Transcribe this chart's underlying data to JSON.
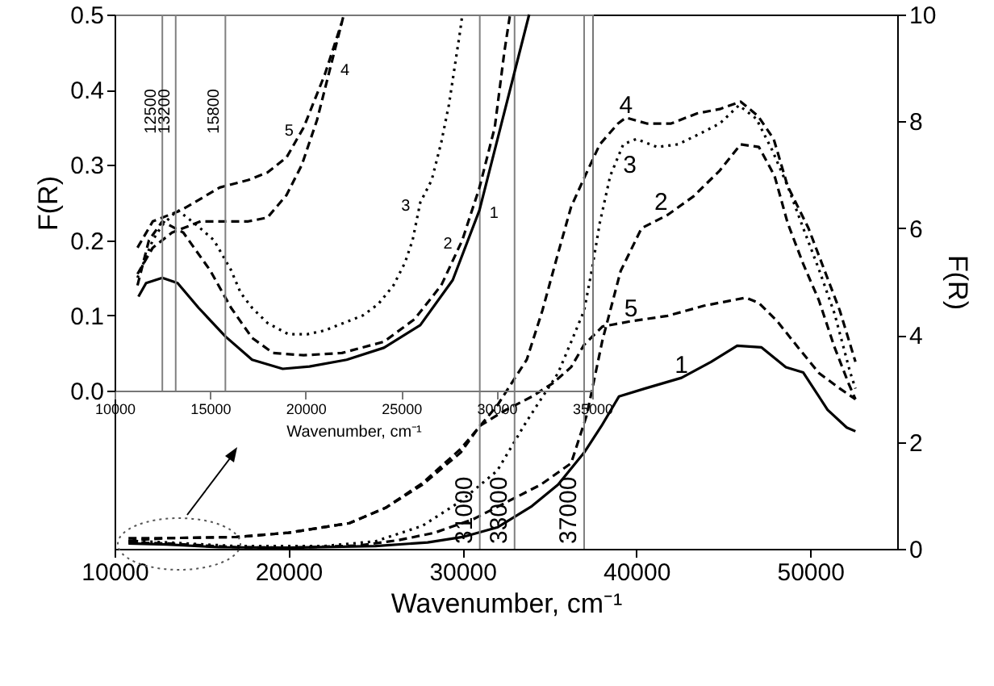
{
  "chart_data": [
    {
      "type": "line",
      "xlabel": "Wavenumber, cm⁻¹",
      "ylabel": "F(R)",
      "xlim": [
        10000,
        55000
      ],
      "xticks": [
        10000,
        20000,
        30000,
        40000,
        50000
      ],
      "ylim": [
        0,
        10
      ],
      "yticks": [
        0,
        2,
        4,
        6,
        8,
        10
      ],
      "series": [
        {
          "name": "1",
          "color": "#000000",
          "line_style": "solid",
          "x": [
            10800,
            13000,
            16000,
            20000,
            25000,
            28000,
            30000,
            32000,
            34000,
            35500,
            37000,
            38000,
            39000,
            40500,
            42600,
            44300,
            45800,
            47200,
            48600,
            49600,
            51000,
            52100,
            52600
          ],
          "values": [
            0.1,
            0.08,
            0.03,
            0.02,
            0.05,
            0.12,
            0.22,
            0.4,
            0.8,
            1.2,
            1.8,
            2.3,
            2.85,
            3.0,
            3.2,
            3.5,
            3.8,
            3.77,
            3.4,
            3.3,
            2.6,
            2.27,
            2.2
          ]
        },
        {
          "name": "2",
          "color": "#000000",
          "line_style": "dashed",
          "x": [
            10800,
            13000,
            17000,
            20000,
            24000,
            26300,
            28400,
            30600,
            32700,
            34500,
            36250,
            37150,
            38050,
            39100,
            40300,
            41800,
            43300,
            44800,
            46000,
            47050,
            47950,
            48700,
            49600,
            50500,
            51400,
            52200,
            52600
          ],
          "values": [
            0.12,
            0.1,
            0.03,
            0.02,
            0.06,
            0.16,
            0.3,
            0.55,
            0.9,
            1.2,
            1.6,
            2.5,
            3.9,
            5.2,
            6.0,
            6.25,
            6.6,
            7.08,
            7.57,
            7.52,
            6.98,
            6.1,
            5.33,
            4.65,
            3.77,
            3.1,
            2.8
          ]
        },
        {
          "name": "3",
          "color": "#000000",
          "line_style": "dotted",
          "x": [
            10800,
            13000,
            17000,
            22000,
            25000,
            27700,
            29900,
            32000,
            33700,
            35500,
            36250,
            37000,
            37450,
            37900,
            38500,
            39250,
            40000,
            41200,
            42400,
            43600,
            44800,
            45900,
            46900,
            47800,
            48700,
            49600,
            50500,
            51400,
            52300,
            52600
          ],
          "values": [
            0.15,
            0.12,
            0.05,
            0.05,
            0.14,
            0.43,
            0.89,
            1.46,
            2.39,
            3.29,
            3.87,
            4.46,
            5.23,
            6.1,
            6.98,
            7.57,
            7.67,
            7.52,
            7.57,
            7.76,
            7.96,
            8.3,
            8.05,
            7.47,
            6.79,
            6.0,
            5.23,
            4.4,
            3.3,
            3.0
          ]
        },
        {
          "name": "4",
          "color": "#000000",
          "line_style": "dashed",
          "x": [
            10800,
            13000,
            17000,
            20000,
            23500,
            25600,
            27700,
            29900,
            32000,
            33700,
            34600,
            35500,
            36250,
            37000,
            37900,
            38950,
            39400,
            40600,
            42000,
            43500,
            44800,
            46000,
            47000,
            47900,
            48700,
            49900,
            50800,
            51700,
            52600
          ],
          "values": [
            0.15,
            0.2,
            0.22,
            0.3,
            0.48,
            0.77,
            1.23,
            1.87,
            2.68,
            3.54,
            4.46,
            5.53,
            6.4,
            6.94,
            7.57,
            7.96,
            8.07,
            7.96,
            7.96,
            8.15,
            8.23,
            8.37,
            8.1,
            7.67,
            6.79,
            6.0,
            5.23,
            4.46,
            3.5
          ]
        },
        {
          "name": "5",
          "color": "#000000",
          "line_style": "dashed",
          "x": [
            10800,
            13000,
            17000,
            20000,
            23500,
            25600,
            27700,
            29900,
            31000,
            32500,
            34000,
            35200,
            36250,
            37000,
            38050,
            39700,
            41800,
            43900,
            46300,
            47050,
            48100,
            49300,
            50500,
            51700,
            52600
          ],
          "values": [
            0.2,
            0.2,
            0.22,
            0.3,
            0.48,
            0.77,
            1.2,
            1.8,
            2.3,
            2.6,
            2.85,
            3.1,
            3.4,
            3.82,
            4.16,
            4.26,
            4.36,
            4.55,
            4.7,
            4.6,
            4.26,
            3.77,
            3.29,
            3.0,
            2.8
          ]
        }
      ],
      "ref_lines": [
        {
          "axis": "x",
          "value": 31000,
          "label": "31000",
          "color": "#808080"
        },
        {
          "axis": "x",
          "value": 33000,
          "label": "33000",
          "color": "#808080"
        },
        {
          "axis": "x",
          "value": 37000,
          "label": "37000",
          "color": "#808080"
        }
      ]
    },
    {
      "type": "line",
      "xlabel": "Wavenumber, cm⁻¹",
      "ylabel": "F(R)",
      "xlim": [
        10000,
        35000
      ],
      "xticks": [
        10000,
        15000,
        20000,
        25000,
        30000,
        35000
      ],
      "ylim": [
        0,
        0.5
      ],
      "yticks": [
        {
          "value": 0,
          "label": "0.0"
        },
        {
          "value": 0.1,
          "label": "0.1"
        },
        {
          "value": 0.2,
          "label": "0.2"
        },
        {
          "value": 0.3,
          "label": "0.3"
        },
        {
          "value": 0.4,
          "label": "0.4"
        },
        {
          "value": 0.5,
          "label": "0.5"
        }
      ],
      "series": [
        {
          "name": "1",
          "color": "#000000",
          "line_style": "solid",
          "x": [
            11250,
            11650,
            12500,
            13300,
            14400,
            15800,
            17200,
            18800,
            20200,
            22150,
            24100,
            26000,
            27700,
            29100,
            30200,
            31000,
            31700
          ],
          "values": [
            0.125,
            0.143,
            0.15,
            0.143,
            0.11,
            0.072,
            0.041,
            0.029,
            0.032,
            0.041,
            0.057,
            0.087,
            0.147,
            0.24,
            0.35,
            0.43,
            0.5
          ]
        },
        {
          "name": "2",
          "color": "#000000",
          "line_style": "dashed",
          "x": [
            11200,
            11800,
            12500,
            13600,
            15000,
            16100,
            17200,
            18300,
            19900,
            21900,
            24100,
            25700,
            27100,
            28200,
            29100,
            29900,
            30400,
            30700
          ],
          "values": [
            0.14,
            0.2,
            0.225,
            0.21,
            0.16,
            0.11,
            0.07,
            0.05,
            0.047,
            0.05,
            0.065,
            0.095,
            0.14,
            0.2,
            0.27,
            0.35,
            0.45,
            0.5
          ]
        },
        {
          "name": "3",
          "color": "#000000",
          "line_style": "dotted",
          "x": [
            11200,
            12000,
            12500,
            13300,
            14300,
            15200,
            16100,
            16600,
            17200,
            18000,
            19100,
            20100,
            21000,
            22000,
            23000,
            23800,
            24600,
            25200,
            25600,
            26000,
            26600,
            27100,
            27500,
            27800,
            28100,
            28200
          ],
          "values": [
            0.15,
            0.2,
            0.22,
            0.24,
            0.22,
            0.2,
            0.16,
            0.13,
            0.11,
            0.09,
            0.075,
            0.075,
            0.08,
            0.09,
            0.1,
            0.115,
            0.14,
            0.17,
            0.2,
            0.25,
            0.28,
            0.33,
            0.38,
            0.43,
            0.48,
            0.5
          ]
        },
        {
          "name": "4",
          "color": "#000000",
          "line_style": "dashed",
          "x": [
            11200,
            12000,
            13000,
            14500,
            17000,
            18000,
            19000,
            19800,
            20600,
            21300,
            22000
          ],
          "values": [
            0.155,
            0.19,
            0.21,
            0.225,
            0.225,
            0.23,
            0.26,
            0.3,
            0.36,
            0.43,
            0.5
          ]
        },
        {
          "name": "5",
          "color": "#000000",
          "line_style": "dashed",
          "x": [
            11200,
            12000,
            13500,
            15500,
            17000,
            18000,
            19000,
            19900,
            21000,
            21900
          ],
          "values": [
            0.19,
            0.225,
            0.24,
            0.27,
            0.28,
            0.29,
            0.31,
            0.35,
            0.42,
            0.49
          ]
        }
      ],
      "ref_lines": [
        {
          "axis": "x",
          "value": 12500,
          "label": "12500",
          "color": "#808080"
        },
        {
          "axis": "x",
          "value": 13200,
          "label": "13200",
          "color": "#808080"
        },
        {
          "axis": "x",
          "value": 15800,
          "label": "15800",
          "color": "#808080"
        }
      ]
    }
  ]
}
